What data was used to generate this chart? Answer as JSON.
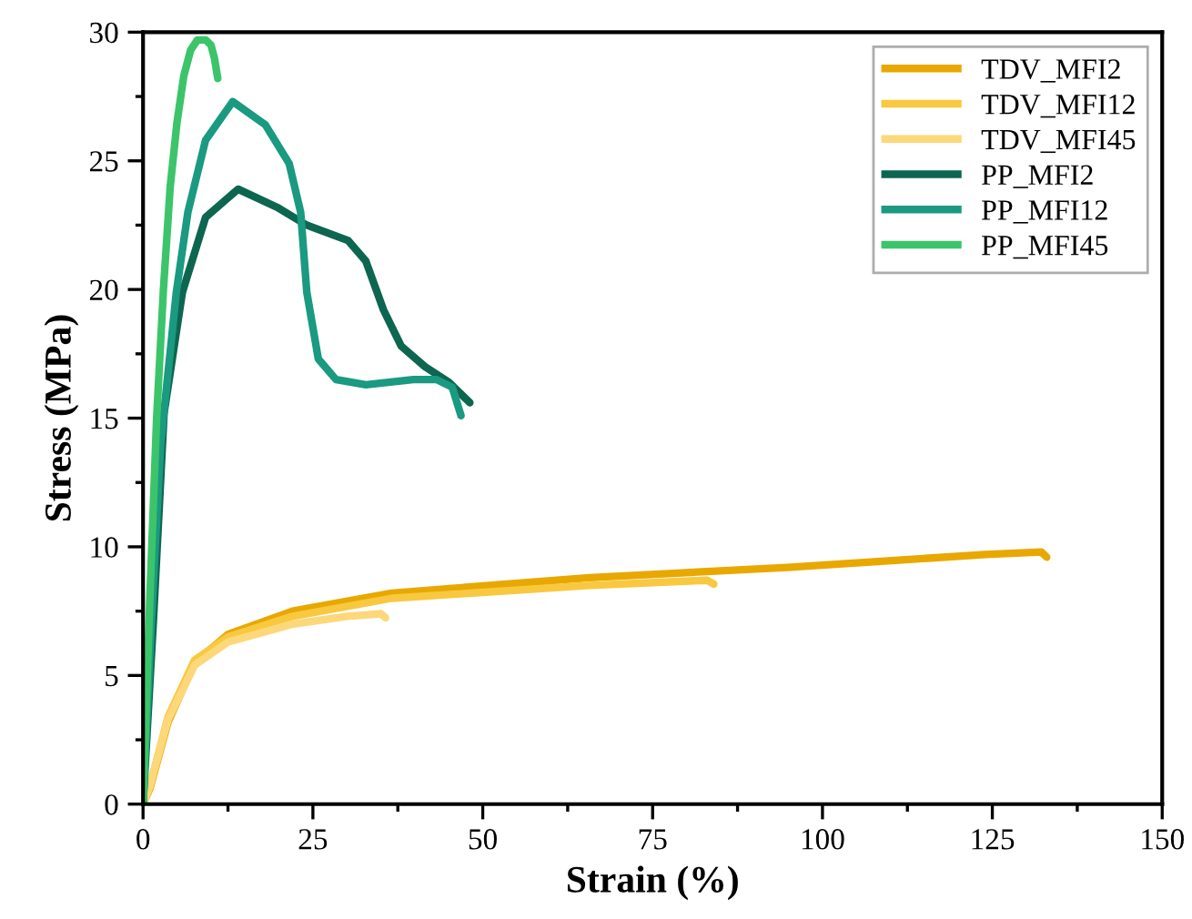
{
  "chart_data": {
    "type": "line",
    "xlabel": "Strain (%)",
    "ylabel": "Stress (MPa)",
    "xlim": [
      0,
      150
    ],
    "ylim": [
      0,
      30
    ],
    "xticks": [
      0,
      25,
      50,
      75,
      100,
      125,
      150
    ],
    "yticks": [
      0,
      5,
      10,
      15,
      20,
      25,
      30
    ],
    "grid": false,
    "legend": "top right",
    "marker": "none",
    "line_style": "solid",
    "series": [
      {
        "name": "TDV_MFI2",
        "color": "#e8a800",
        "x": [
          0,
          1,
          3.7,
          7.6,
          12.5,
          22,
          36.6,
          65.7,
          94.8,
          124,
          132.2,
          133
        ],
        "values": [
          0,
          0.6,
          3.2,
          5.5,
          6.6,
          7.5,
          8.2,
          8.8,
          9.2,
          9.7,
          9.8,
          9.6
        ]
      },
      {
        "name": "TDV_MFI12",
        "color": "#f8c840",
        "x": [
          0,
          1,
          3.7,
          7.6,
          12.5,
          22,
          36.6,
          65.7,
          83,
          84
        ],
        "values": [
          0,
          0.7,
          3.4,
          5.6,
          6.5,
          7.3,
          8.0,
          8.5,
          8.7,
          8.55
        ]
      },
      {
        "name": "TDV_MFI45",
        "color": "#fcd87a",
        "x": [
          0,
          1,
          3.7,
          7.6,
          12.5,
          22.1,
          30,
          35,
          35.7
        ],
        "values": [
          0,
          0.7,
          3.3,
          5.4,
          6.3,
          7.0,
          7.3,
          7.4,
          7.24
        ]
      },
      {
        "name": "PP_MFI2",
        "color": "#0d6650",
        "x": [
          0,
          1.5,
          3.1,
          5.8,
          9.2,
          14,
          19.7,
          24.1,
          30.2,
          32.8,
          35.4,
          38,
          41.5,
          45,
          48.1
        ],
        "values": [
          0,
          7,
          15.2,
          19.9,
          22.8,
          23.9,
          23.2,
          22.5,
          21.9,
          21.1,
          19.2,
          17.8,
          17,
          16.4,
          15.6
        ]
      },
      {
        "name": "PP_MFI12",
        "color": "#1a9a80",
        "x": [
          0,
          1.2,
          2.6,
          4.9,
          6.6,
          9.2,
          13.2,
          18,
          21.5,
          23.2,
          24.1,
          25.8,
          28.4,
          32.8,
          39.8,
          43.2,
          45.5,
          46.8
        ],
        "values": [
          0,
          7,
          14,
          19.9,
          23,
          25.8,
          27.3,
          26.4,
          24.9,
          23,
          19.9,
          17.3,
          16.5,
          16.3,
          16.5,
          16.5,
          16.2,
          15.1
        ]
      },
      {
        "name": "PP_MFI45",
        "color": "#3cc46a",
        "x": [
          0,
          1,
          2,
          3,
          4,
          5,
          6,
          7,
          8,
          9.2,
          10,
          10.5,
          11
        ],
        "values": [
          0,
          8,
          15,
          20,
          24,
          26.5,
          28.3,
          29.3,
          29.7,
          29.7,
          29.5,
          29,
          28.2
        ]
      }
    ]
  }
}
